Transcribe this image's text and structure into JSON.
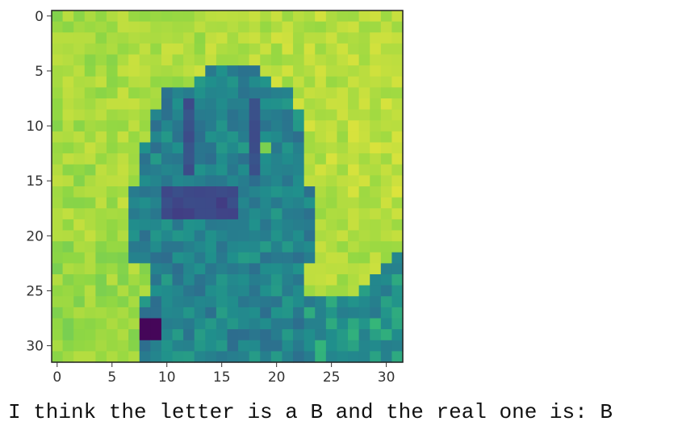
{
  "image": {
    "type": "heatmap",
    "grid_size": 32,
    "colormap": "viridis",
    "subject": "hand-sign-B",
    "x_ticks": [
      0,
      5,
      10,
      15,
      20,
      25,
      30
    ],
    "y_ticks": [
      0,
      5,
      10,
      15,
      20,
      25,
      30
    ]
  },
  "caption": "I think the letter is a B and the real one is: B"
}
